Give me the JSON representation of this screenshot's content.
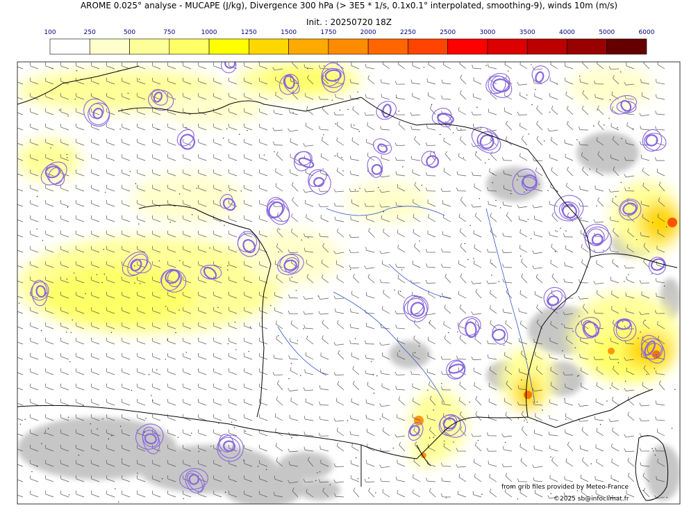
{
  "title": {
    "line1": "AROME 0.025° analyse - MUCAPE (J/kg), Divergence 300 hPa (> 3E5 * 1/s, 0.1x0.1° interpolated, smoothing-9), winds 10m (m/s)",
    "line2": "Init. : 20250720 18Z"
  },
  "colorbar": {
    "ticks": [
      "100",
      "250",
      "500",
      "750",
      "1000",
      "1250",
      "1500",
      "1750",
      "2000",
      "2250",
      "2500",
      "3000",
      "3500",
      "4000",
      "5000",
      "6000"
    ],
    "colors": [
      "#ffffff",
      "#ffffcc",
      "#ffff99",
      "#ffff66",
      "#ffff00",
      "#ffd700",
      "#ffaa00",
      "#ff8c00",
      "#ff6600",
      "#ff4400",
      "#ff0000",
      "#dd0000",
      "#bb0000",
      "#990000",
      "#660000"
    ],
    "tick_color": "#000080"
  },
  "map": {
    "ocean_color": "#ffffff",
    "terrain_color": "#bdbdbd",
    "divergence_color": "#8866dd",
    "river_color": "#3355cc",
    "border_color": "#000000"
  },
  "credits": {
    "line1": "from grib files provided by Meteo-France",
    "line2": "©2025 sb@infoclimat.fr"
  }
}
